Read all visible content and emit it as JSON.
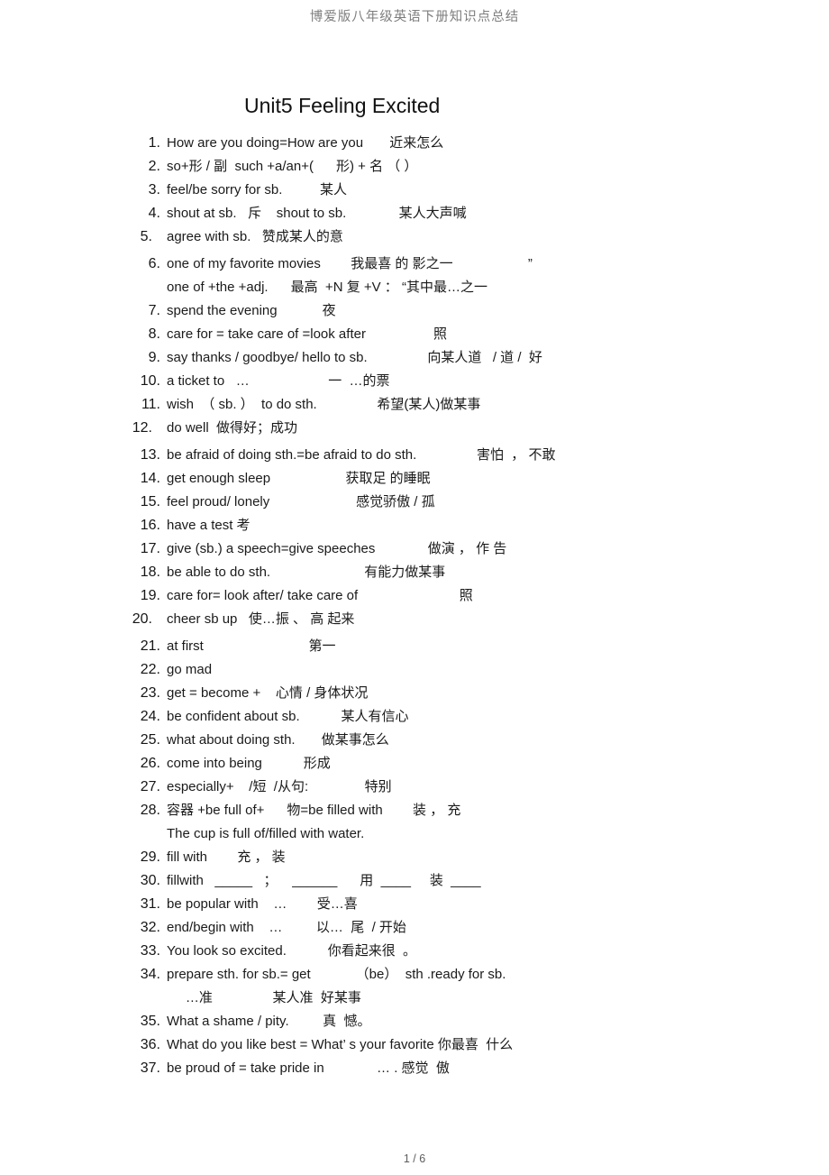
{
  "header": {
    "text": "博爱版八年级英语下册知识点总结"
  },
  "title": "Unit5 Feeling Excited",
  "footer": {
    "page_indicator": "1 / 6"
  },
  "items": [
    {
      "num": "1.",
      "lines": [
        "How are you doing=How are you       近来怎么"
      ]
    },
    {
      "num": "2.",
      "lines": [
        "so+形 / 副  such +a/an+(      形) + 名 （ ）"
      ]
    },
    {
      "num": "3.",
      "lines": [
        "feel/be sorry for sb.          某人"
      ]
    },
    {
      "num": "4.",
      "lines": [
        "shout at sb.   斥    shout to sb.              某人大声喊"
      ]
    },
    {
      "num": "5.",
      "outdent": true,
      "lines": [
        "agree with sb.   赞成某人的意"
      ]
    },
    {
      "num": "6.",
      "gap_before": true,
      "lines": [
        "one of my favorite movies        我最喜 的 影之一                    ”",
        "one of +the +adj.      最高  +N 复 +V ： “其中最…之一"
      ]
    },
    {
      "num": "7.",
      "lines": [
        "spend the evening            夜"
      ]
    },
    {
      "num": "8.",
      "lines": [
        "care for = take care of =look after                  照"
      ]
    },
    {
      "num": "9.",
      "lines": [
        "say thanks / goodbye/ hello to sb.                向某人道   / 道 /  好"
      ]
    },
    {
      "num": "10.",
      "lines": [
        "a ticket to   …                     一  …的票"
      ]
    },
    {
      "num": "11.",
      "lines": [
        "wish  （ sb. ）  to do sth.                希望(某人)做某事"
      ]
    },
    {
      "num": "12.",
      "outdent": true,
      "lines": [
        "do well  做得好；成功"
      ]
    },
    {
      "num": "13.",
      "gap_before": true,
      "lines": [
        "be afraid of doing sth.=be afraid to do sth.                害怕  ， 不敢"
      ]
    },
    {
      "num": "14.",
      "lines": [
        "get enough sleep                    获取足 的睡眠"
      ]
    },
    {
      "num": "15.",
      "lines": [
        "feel proud/ lonely                       感觉骄傲 / 孤"
      ]
    },
    {
      "num": "16.",
      "lines": [
        "have a test 考"
      ]
    },
    {
      "num": "17.",
      "lines": [
        "give (sb.) a speech=give speeches              做演 ， 作 告"
      ]
    },
    {
      "num": "18.",
      "lines": [
        "be able to do sth.                         有能力做某事"
      ]
    },
    {
      "num": "19.",
      "lines": [
        "care for= look after/ take care of                           照"
      ]
    },
    {
      "num": "20.",
      "outdent": true,
      "lines": [
        "cheer sb up   使…振 、 高 起来"
      ]
    },
    {
      "num": "21.",
      "gap_before": true,
      "lines": [
        "at first                            第一"
      ]
    },
    {
      "num": "22.",
      "lines": [
        "go mad"
      ]
    },
    {
      "num": "23.",
      "lines": [
        "get = become +    心情 / 身体状况"
      ]
    },
    {
      "num": "24.",
      "lines": [
        "be confident about sb.           某人有信心"
      ]
    },
    {
      "num": "25.",
      "lines": [
        "what about doing sth.       做某事怎么"
      ]
    },
    {
      "num": "26.",
      "lines": [
        "come into being           形成"
      ]
    },
    {
      "num": "27.",
      "lines": [
        "especially+    /短  /从句:               特别"
      ]
    },
    {
      "num": "28.",
      "lines": [
        "容器 +be full of+      物=be filled with        装 ， 充",
        "The cup is full of/filled with water."
      ]
    },
    {
      "num": "29.",
      "lines": [
        "fill with        充 ， 装"
      ]
    },
    {
      "num": "30.",
      "lines": [
        "fillwith   _____   ；    ______      用  ____     装  ____"
      ]
    },
    {
      "num": "31.",
      "lines": [
        "be popular with    …        受…喜"
      ]
    },
    {
      "num": "32.",
      "lines": [
        "end/begin with    …         以…  尾  / 开始"
      ]
    },
    {
      "num": "33.",
      "lines": [
        "You look so excited.           你看起来很  。"
      ]
    },
    {
      "num": "34.",
      "lines": [
        "prepare sth. for sb.= get            （be）  sth .ready for sb.",
        "     …准                某人准  好某事"
      ]
    },
    {
      "num": "35.",
      "lines": [
        "What a shame / pity.         真  憾。"
      ]
    },
    {
      "num": "36.",
      "lines": [
        "What do you like best = What’ s your favorite 你最喜  什么"
      ]
    },
    {
      "num": "37.",
      "lines": [
        "be proud of = take pride in              … . 感觉  傲"
      ]
    }
  ]
}
